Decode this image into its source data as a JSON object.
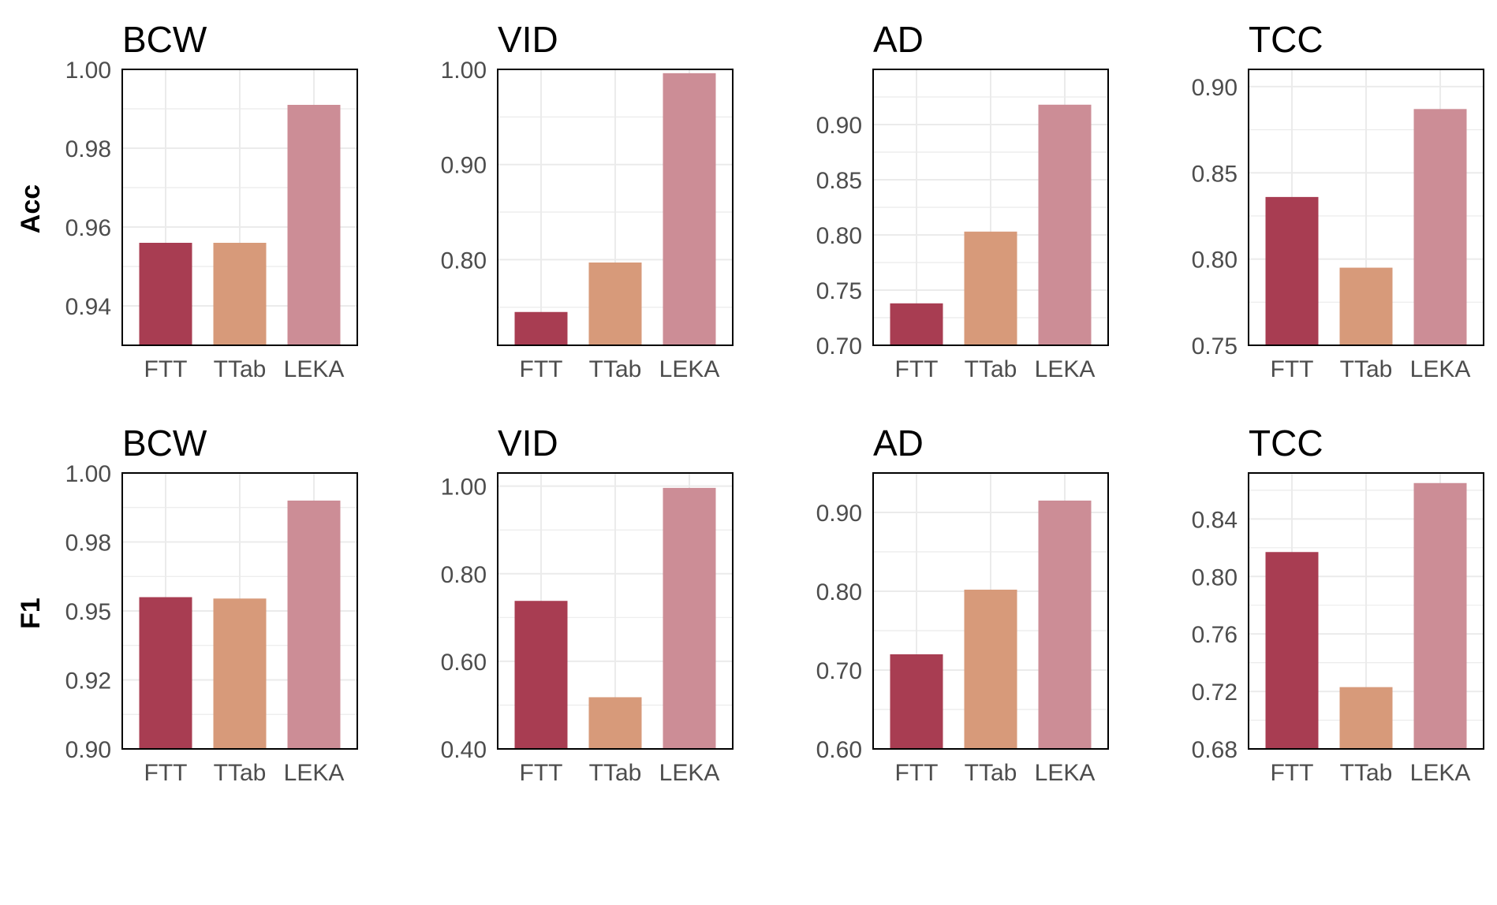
{
  "row_labels": [
    "Acc",
    "F1"
  ],
  "colors": {
    "FTT": "#a83d52",
    "TTab": "#d79a7a",
    "LEKA": "#cc8d96",
    "grid": "#ebebeb",
    "axis": "#000000",
    "tick_text": "#4d4d4d"
  },
  "chart_data": [
    {
      "type": "bar",
      "title": "BCW",
      "ylabel": "Acc",
      "categories": [
        "FTT",
        "TTab",
        "LEKA"
      ],
      "values": [
        0.956,
        0.956,
        0.991
      ],
      "ylim": [
        0.93,
        1.0
      ],
      "yticks": [
        0.94,
        0.96,
        0.98,
        1.0
      ],
      "ytick_labels": [
        "0.94",
        "0.96",
        "0.98",
        "1.00"
      ],
      "grid": true
    },
    {
      "type": "bar",
      "title": "VID",
      "ylabel": "",
      "categories": [
        "FTT",
        "TTab",
        "LEKA"
      ],
      "values": [
        0.745,
        0.797,
        0.996
      ],
      "ylim": [
        0.71,
        1.0
      ],
      "yticks": [
        0.8,
        0.9,
        1.0
      ],
      "ytick_labels": [
        "0.80",
        "0.90",
        "1.00"
      ],
      "grid": true
    },
    {
      "type": "bar",
      "title": "AD",
      "ylabel": "",
      "categories": [
        "FTT",
        "TTab",
        "LEKA"
      ],
      "values": [
        0.738,
        0.803,
        0.918
      ],
      "ylim": [
        0.7,
        0.95
      ],
      "yticks": [
        0.7,
        0.75,
        0.8,
        0.85,
        0.9
      ],
      "ytick_labels": [
        "0.70",
        "0.75",
        "0.80",
        "0.85",
        "0.90"
      ],
      "grid": true
    },
    {
      "type": "bar",
      "title": "TCC",
      "ylabel": "",
      "categories": [
        "FTT",
        "TTab",
        "LEKA"
      ],
      "values": [
        0.836,
        0.795,
        0.887
      ],
      "ylim": [
        0.75,
        0.91
      ],
      "yticks": [
        0.75,
        0.8,
        0.85,
        0.9
      ],
      "ytick_labels": [
        "0.75",
        "0.80",
        "0.85",
        "0.90"
      ],
      "grid": true
    },
    {
      "type": "bar",
      "title": "BCW",
      "ylabel": "F1",
      "categories": [
        "FTT",
        "TTab",
        "LEKA"
      ],
      "values": [
        0.955,
        0.9545,
        0.99
      ],
      "ylim": [
        0.9,
        1.0
      ],
      "yticks": [
        0.9,
        0.925,
        0.95,
        0.975,
        1.0
      ],
      "ytick_labels": [
        "0.90",
        "0.92",
        "0.95",
        "0.98",
        "1.00"
      ],
      "grid": true
    },
    {
      "type": "bar",
      "title": "VID",
      "ylabel": "",
      "categories": [
        "FTT",
        "TTab",
        "LEKA"
      ],
      "values": [
        0.738,
        0.518,
        0.996
      ],
      "ylim": [
        0.4,
        1.03
      ],
      "yticks": [
        0.4,
        0.6,
        0.8,
        1.0
      ],
      "ytick_labels": [
        "0.40",
        "0.60",
        "0.80",
        "1.00"
      ],
      "grid": true
    },
    {
      "type": "bar",
      "title": "AD",
      "ylabel": "",
      "categories": [
        "FTT",
        "TTab",
        "LEKA"
      ],
      "values": [
        0.72,
        0.802,
        0.915
      ],
      "ylim": [
        0.6,
        0.95
      ],
      "yticks": [
        0.6,
        0.7,
        0.8,
        0.9
      ],
      "ytick_labels": [
        "0.60",
        "0.70",
        "0.80",
        "0.90"
      ],
      "grid": true
    },
    {
      "type": "bar",
      "title": "TCC",
      "ylabel": "",
      "categories": [
        "FTT",
        "TTab",
        "LEKA"
      ],
      "values": [
        0.817,
        0.723,
        0.865
      ],
      "ylim": [
        0.68,
        0.872
      ],
      "yticks": [
        0.68,
        0.72,
        0.76,
        0.8,
        0.84
      ],
      "ytick_labels": [
        "0.68",
        "0.72",
        "0.76",
        "0.80",
        "0.84"
      ],
      "grid": true
    }
  ]
}
